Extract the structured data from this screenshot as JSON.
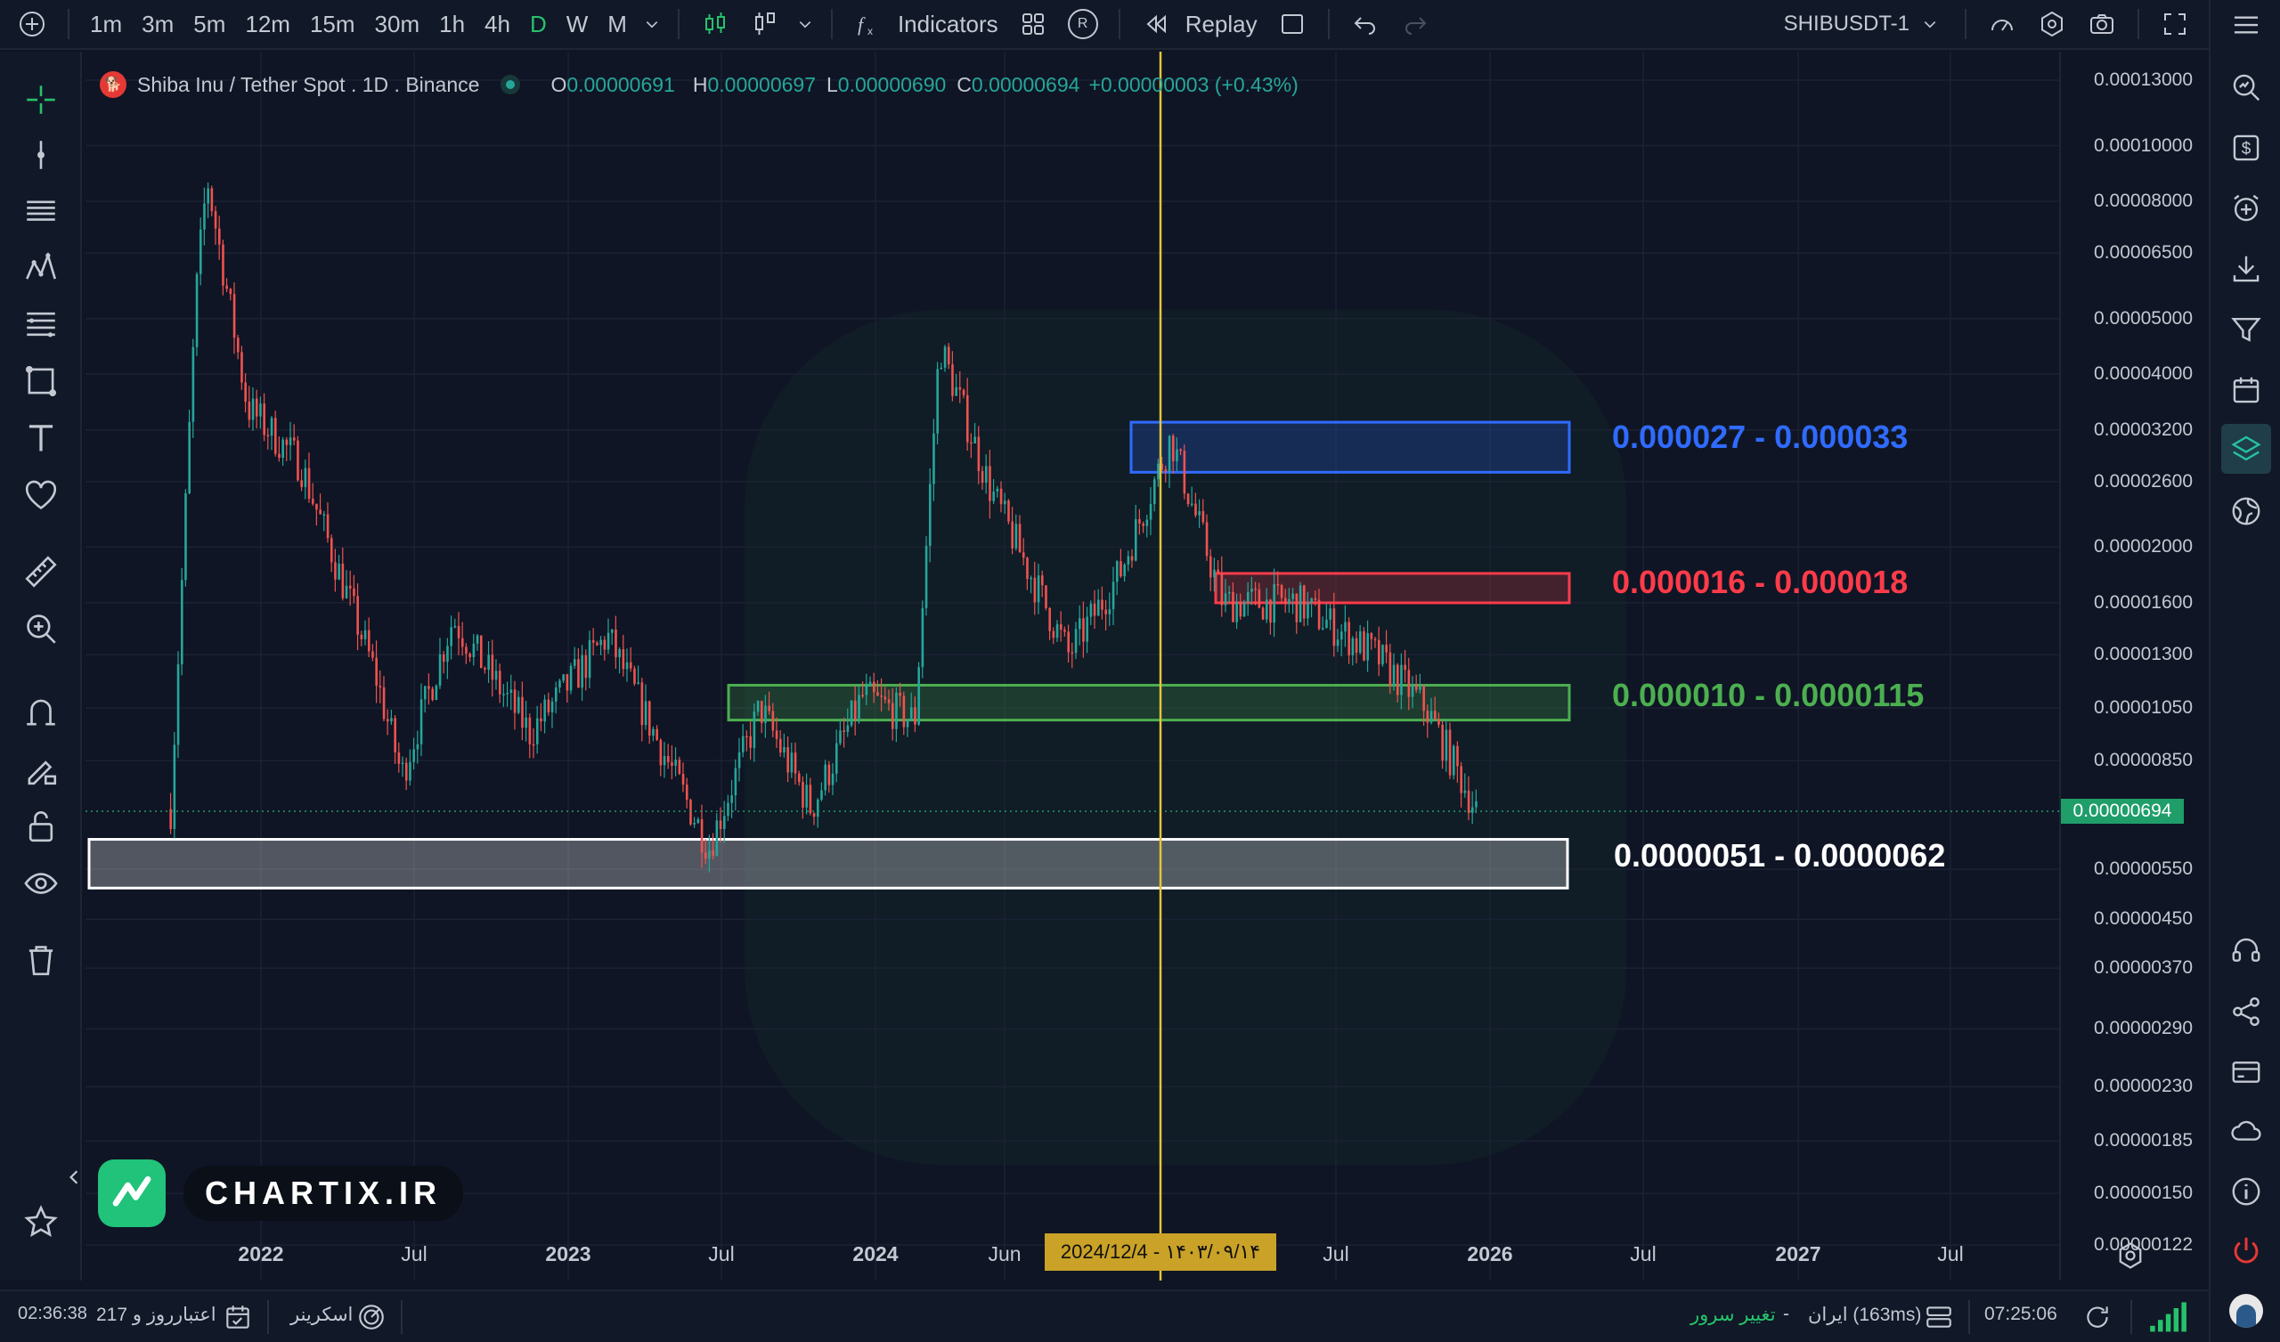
{
  "toolbar": {
    "intervals": [
      "1m",
      "3m",
      "5m",
      "12m",
      "15m",
      "30m",
      "1h",
      "4h",
      "D",
      "W",
      "M"
    ],
    "active_interval": "D",
    "indicators_label": "Indicators",
    "replay_label": "Replay",
    "symbol": "SHIBUSDT-1",
    "r_badge": "R"
  },
  "legend": {
    "title": "Shiba Inu / Tether Spot . 1D . Binance",
    "o_label": "O",
    "o_value": "0.00000691",
    "h_label": "H",
    "h_value": "0.00000697",
    "l_label": "L",
    "l_value": "0.00000690",
    "c_label": "C",
    "c_value": "0.00000694",
    "change": "+0.00000003 (+0.43%)"
  },
  "price_axis": {
    "labels": [
      "0.00013000",
      "0.00010000",
      "0.00008000",
      "0.00006500",
      "0.00005000",
      "0.00004000",
      "0.00003200",
      "0.00002600",
      "0.00002000",
      "0.00001600",
      "0.00001300",
      "0.00001050",
      "0.00000850",
      "0.00000550",
      "0.00000450",
      "0.00000370",
      "0.00000290",
      "0.00000230",
      "0.00000185",
      "0.00000150",
      "0.00000122"
    ],
    "current_price": "0.00000694",
    "scale": "log",
    "accent": "#1f9e6a"
  },
  "time_axis": {
    "labels": [
      {
        "text": "2022",
        "year": true
      },
      {
        "text": "Jul",
        "year": false
      },
      {
        "text": "2023",
        "year": true
      },
      {
        "text": "Jul",
        "year": false
      },
      {
        "text": "2024",
        "year": true
      },
      {
        "text": "Jun",
        "year": false
      },
      {
        "text": "Jul",
        "year": false
      },
      {
        "text": "2026",
        "year": true
      },
      {
        "text": "Jul",
        "year": false
      },
      {
        "text": "2027",
        "year": true
      },
      {
        "text": "Jul",
        "year": false
      }
    ],
    "crosshair_date": "2024/12/4 - ۱۴۰۳/۰۹/۱۴"
  },
  "zones": [
    {
      "label": "0.000027 - 0.000033",
      "low": 2.7e-05,
      "high": 3.3e-05,
      "color": "#2f6bff"
    },
    {
      "label": "0.000016 - 0.000018",
      "low": 1.6e-05,
      "high": 1.8e-05,
      "color": "#ff3b4a"
    },
    {
      "label": "0.000010 - 0.0000115",
      "low": 1e-05,
      "high": 1.15e-05,
      "color": "#4caf50"
    },
    {
      "label": "0.0000051 - 0.0000062",
      "low": 5.1e-06,
      "high": 6.2e-06,
      "color": "#ffffff"
    }
  ],
  "brand": {
    "name": "CHARTIX.IR"
  },
  "status": {
    "timer": "02:36:38",
    "credit": "217 روز و",
    "credit_label": "اعتبار",
    "screener": "اسکرینر",
    "change_server": "تغییر سرور",
    "dash": "-",
    "server": "ایران (163ms)",
    "clock": "07:25:06"
  },
  "chart_data": {
    "type": "candlestick",
    "symbol": "SHIBUSDT",
    "interval": "1D",
    "y_scale": "log",
    "ylim": [
      1.22e-06,
      0.00013
    ],
    "last_close": 6.94e-06,
    "approx_close_path": [
      {
        "x": "2021-09",
        "y": 7e-06
      },
      {
        "x": "2021-10",
        "y": 5.5e-05
      },
      {
        "x": "2021-10-28",
        "y": 8.8e-05
      },
      {
        "x": "2021-12",
        "y": 3.5e-05
      },
      {
        "x": "2022-02",
        "y": 2.8e-05
      },
      {
        "x": "2022-05",
        "y": 1.2e-05
      },
      {
        "x": "2022-06",
        "y": 8e-06
      },
      {
        "x": "2022-08",
        "y": 1.5e-05
      },
      {
        "x": "2022-11",
        "y": 9.5e-06
      },
      {
        "x": "2023-02",
        "y": 1.4e-05
      },
      {
        "x": "2023-06",
        "y": 6e-06
      },
      {
        "x": "2023-08",
        "y": 1.05e-05
      },
      {
        "x": "2023-10",
        "y": 7e-06
      },
      {
        "x": "2023-12",
        "y": 1.1e-05
      },
      {
        "x": "2024-02",
        "y": 1e-05
      },
      {
        "x": "2024-03",
        "y": 4.5e-05
      },
      {
        "x": "2024-05",
        "y": 2.5e-05
      },
      {
        "x": "2024-08",
        "y": 1.3e-05
      },
      {
        "x": "2024-10",
        "y": 1.8e-05
      },
      {
        "x": "2024-12",
        "y": 3.1e-05
      },
      {
        "x": "2025-02",
        "y": 1.6e-05
      },
      {
        "x": "2025-05",
        "y": 1.6e-05
      },
      {
        "x": "2025-08",
        "y": 1.3e-05
      },
      {
        "x": "2025-10",
        "y": 1.05e-05
      },
      {
        "x": "2025-12",
        "y": 6.94e-06
      }
    ]
  }
}
